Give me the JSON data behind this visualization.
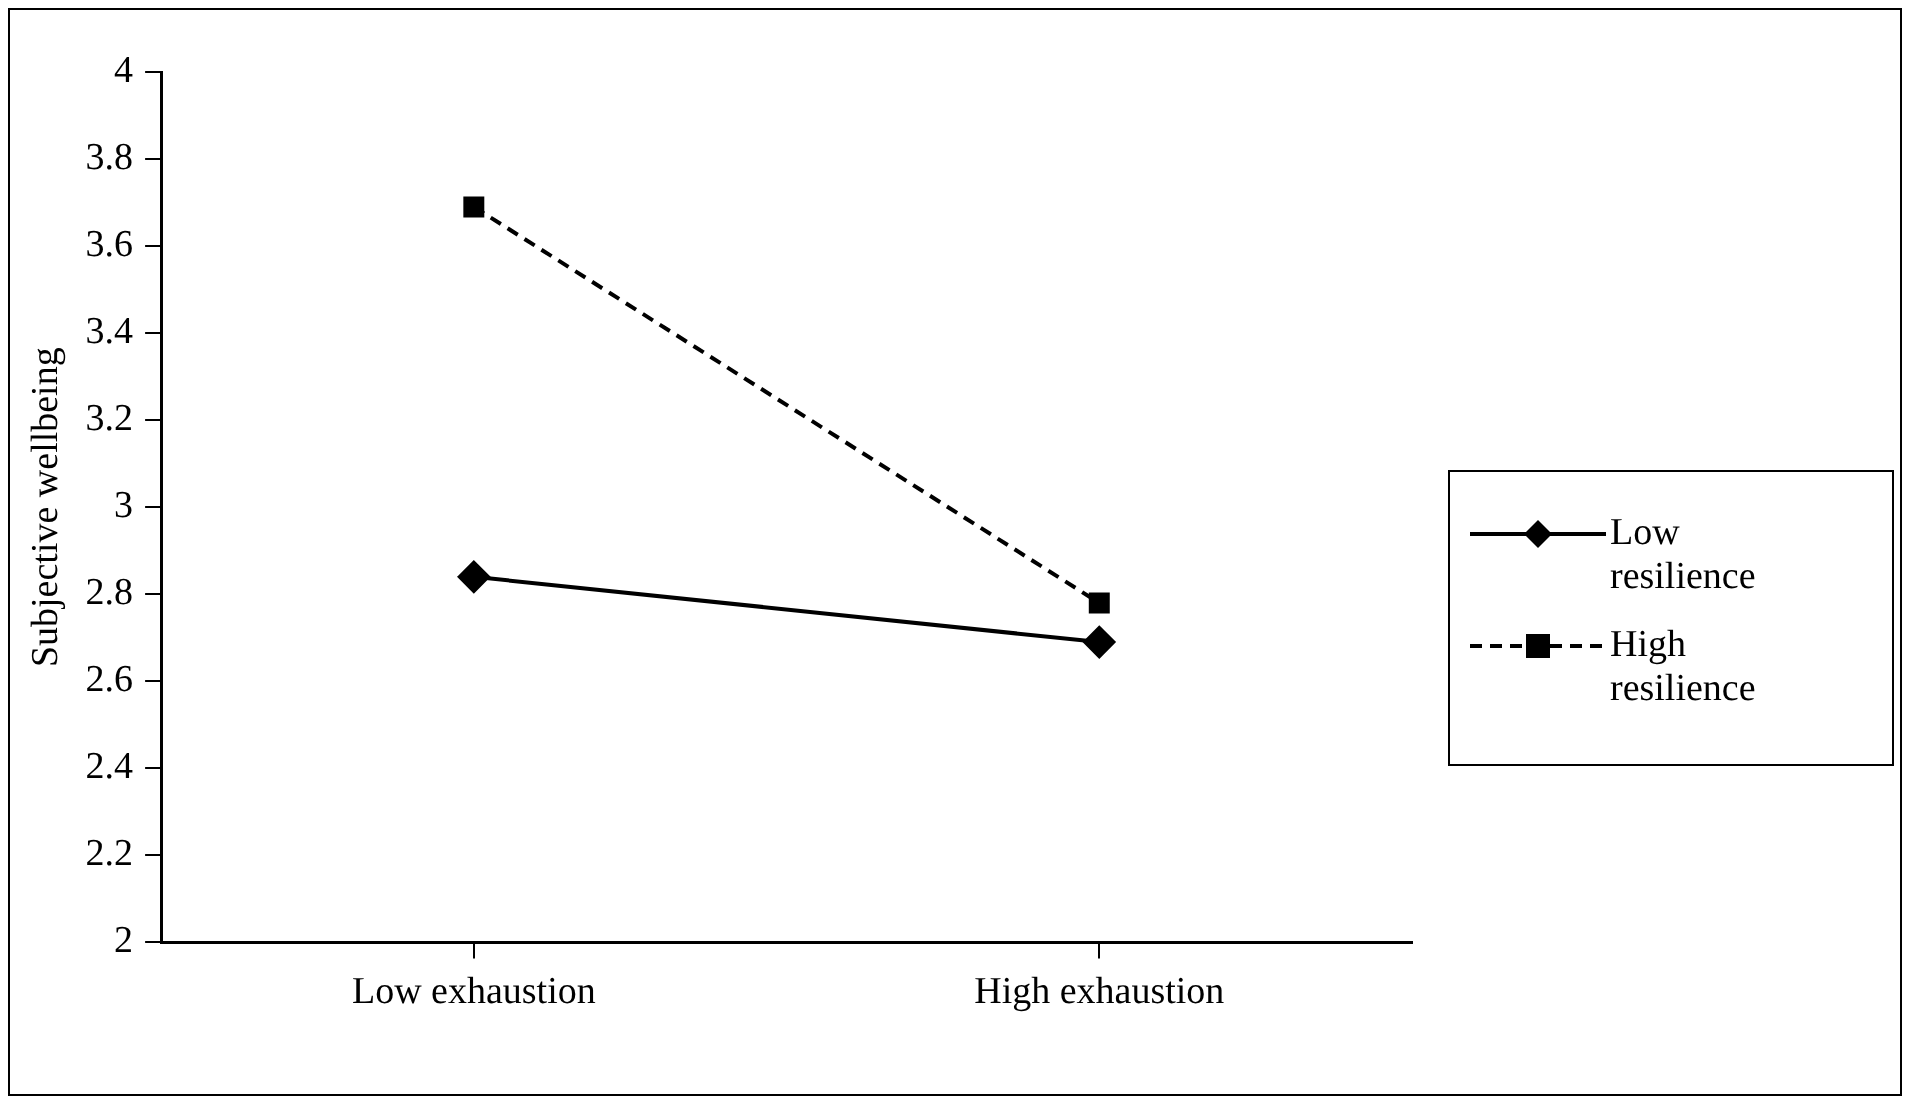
{
  "chart_data": {
    "type": "line",
    "ylabel": "Subjective wellbeing",
    "categories": [
      "Low exhaustion",
      "High exhaustion"
    ],
    "series": [
      {
        "name": "Low resilience",
        "color": "#000000",
        "marker": "diamond",
        "line_style": "solid",
        "values": [
          2.84,
          2.69
        ]
      },
      {
        "name": "High resilience",
        "color": "#000000",
        "marker": "square",
        "line_style": "dashed",
        "values": [
          3.69,
          2.78
        ]
      }
    ],
    "ylim": [
      2,
      4
    ],
    "yticks": [
      2,
      2.2,
      2.4,
      2.6,
      2.8,
      3,
      3.2,
      3.4,
      3.6,
      3.8,
      4
    ],
    "grid": false,
    "legend": "right"
  }
}
